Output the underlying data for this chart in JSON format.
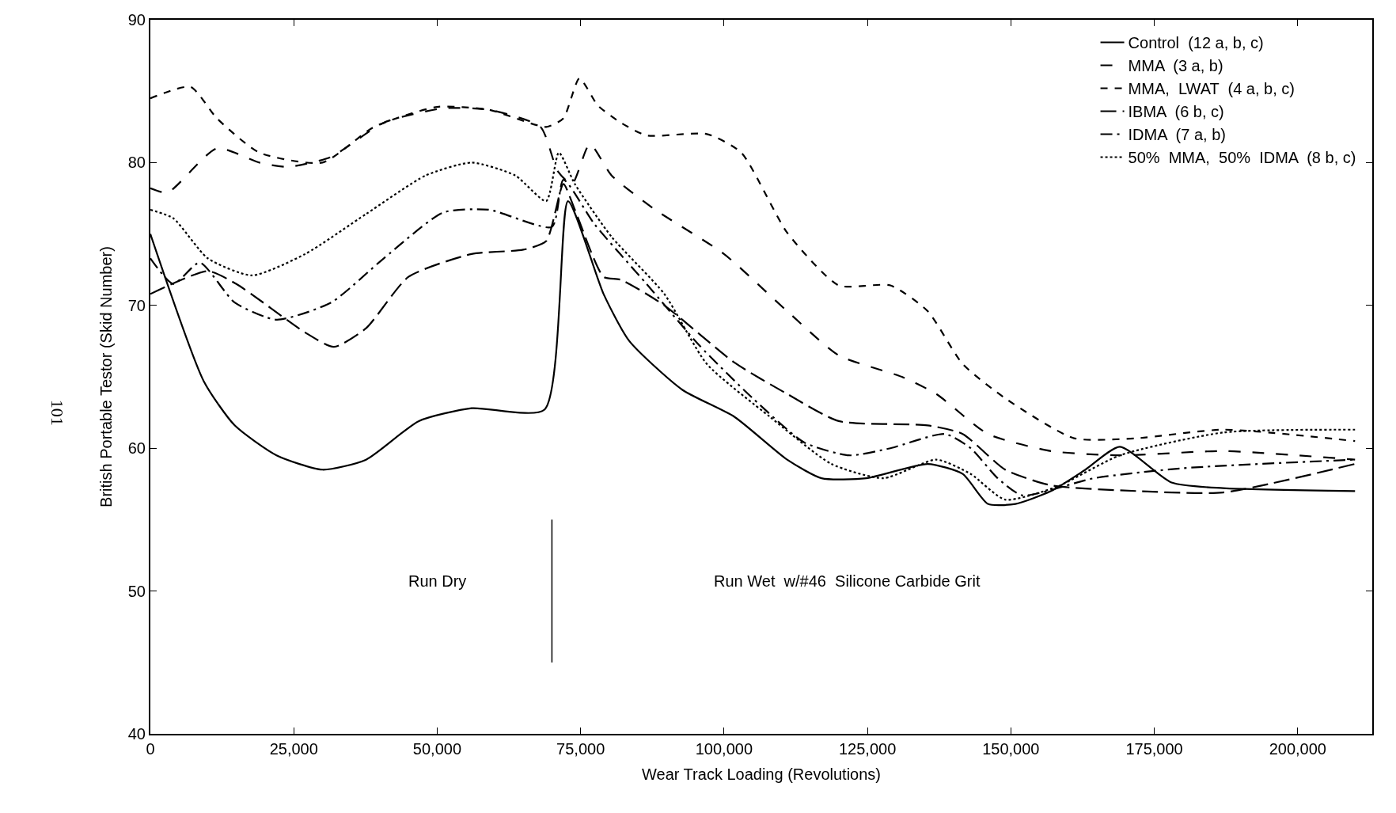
{
  "chart_data": {
    "type": "line",
    "xlabel": "Wear Track Loading (Revolutions)",
    "ylabel": "British Portable Testor (Skid Number)",
    "xlim": [
      0,
      213000
    ],
    "ylim": [
      40,
      90
    ],
    "xticks": [
      0,
      {
        "value": 25000,
        "label": "25,000"
      },
      {
        "value": 50000,
        "label": "50,000"
      },
      {
        "value": 75000,
        "label": "75,000"
      },
      {
        "value": 100000,
        "label": "100,000"
      },
      {
        "value": 125000,
        "label": "125,000"
      },
      {
        "value": 150000,
        "label": "150,000"
      },
      {
        "value": 175000,
        "label": "175,000"
      },
      {
        "value": 200000,
        "label": "200,000"
      }
    ],
    "yticks": [
      40,
      50,
      60,
      70,
      80,
      90
    ],
    "legend": "top right",
    "marker": "none",
    "series": [
      {
        "name": "Control  (12 a, b, c)",
        "color": "#000000",
        "line_style": "solid",
        "x": [
          0,
          9300,
          14700,
          22000,
          30000,
          37600,
          46800,
          56000,
          68700,
          72800,
          79000,
          83500,
          92700,
          101800,
          111000,
          117000,
          124800,
          135500,
          141600,
          146000,
          150800,
          157000,
          163000,
          169000,
          178000,
          187000,
          210000
        ],
        "values": [
          75,
          64.7,
          61.6,
          59.5,
          58.5,
          59.2,
          61.9,
          62.8,
          62.7,
          77.3,
          70.8,
          67.5,
          64.1,
          62.2,
          59.2,
          57.9,
          57.9,
          58.9,
          58.2,
          56.1,
          56.1,
          57,
          58.5,
          60.1,
          57.6,
          57.2,
          57.0
        ]
      },
      {
        "name": "MMA  (3 a, b)",
        "color": "#000000",
        "line_style": "longdash",
        "x": [
          0,
          3000,
          11600,
          19000,
          24000,
          31500,
          40700,
          51000,
          59000,
          68000,
          71000,
          73500,
          76600,
          80400,
          88000,
          100000,
          111000,
          120000,
          131000,
          137000,
          146000,
          157000,
          169000,
          187000,
          210000
        ],
        "values": [
          78.2,
          77.9,
          81,
          80,
          79.7,
          80.4,
          82.8,
          83.8,
          83.7,
          82.5,
          79.4,
          78.5,
          81.3,
          79.1,
          76.7,
          73.6,
          69.6,
          66.5,
          65,
          63.8,
          61,
          59.8,
          59.5,
          59.8,
          59.2
        ]
      },
      {
        "name": "MMA,  LWAT  (4 a, b, c)",
        "color": "#000000",
        "line_style": "dashed",
        "x": [
          0,
          7000,
          11600,
          19000,
          30000,
          39000,
          50000,
          59000,
          69000,
          72000,
          74800,
          78000,
          82000,
          86500,
          97000,
          103000,
          111000,
          120000,
          129000,
          135500,
          141600,
          149000,
          161000,
          172000,
          187000,
          210000
        ],
        "values": [
          84.5,
          85.3,
          83.1,
          80.7,
          80,
          82.5,
          83.9,
          83.7,
          82.5,
          83.1,
          85.9,
          84,
          82.8,
          81.9,
          82,
          80.7,
          75.1,
          71.4,
          71.4,
          69.6,
          65.9,
          63.5,
          60.7,
          60.7,
          61.3,
          60.5
        ]
      },
      {
        "name": "IBMA  (6 b, c)",
        "color": "#000000",
        "line_style": "longdashgap",
        "x": [
          0,
          10000,
          15000,
          27000,
          32000,
          37600,
          45000,
          56000,
          65000,
          69000,
          72000,
          74000,
          79000,
          82000,
          89600,
          101800,
          111000,
          120000,
          135500,
          141600,
          149000,
          157000,
          172000,
          187000,
          210000
        ],
        "values": [
          70.8,
          72.4,
          71.5,
          68.1,
          67.1,
          68.4,
          72,
          73.6,
          73.9,
          74.5,
          78.5,
          76.7,
          72,
          71.8,
          70,
          66,
          63.8,
          61.9,
          61.6,
          61,
          58.5,
          57.4,
          57,
          56.9,
          58.9
        ]
      },
      {
        "name": "IDMA  (7 a, b)",
        "color": "#000000",
        "line_style": "dashdot",
        "x": [
          0,
          4000,
          8600,
          14700,
          22000,
          31500,
          40700,
          51000,
          59000,
          70000,
          72000,
          77400,
          86500,
          95700,
          105000,
          114000,
          121800,
          129000,
          138500,
          143000,
          147700,
          152000,
          164500,
          180000,
          210000
        ],
        "values": [
          73.3,
          71.5,
          73,
          70.2,
          69,
          70.2,
          73.3,
          76.5,
          76.7,
          75.5,
          78.8,
          75.7,
          71.5,
          67.2,
          63.5,
          60.4,
          59.5,
          60,
          61,
          60,
          57.9,
          56.7,
          57.9,
          58.6,
          59.2
        ]
      },
      {
        "name": "50%  MMA,  50%  IDMA  (8 b, c)",
        "color": "#000000",
        "line_style": "dotted",
        "x": [
          0,
          4000,
          10000,
          17700,
          27000,
          37600,
          48000,
          56000,
          63600,
          69000,
          71200,
          74000,
          80400,
          89600,
          97000,
          108000,
          118700,
          127800,
          137000,
          143000,
          149000,
          158000,
          169000,
          187000,
          210000
        ],
        "values": [
          76.7,
          76.1,
          73.3,
          72.1,
          73.6,
          76.4,
          79.1,
          80,
          79.1,
          77.3,
          80.7,
          78.5,
          74.8,
          70.8,
          65.9,
          62.2,
          58.9,
          57.9,
          59.2,
          58.2,
          56.4,
          57.3,
          59.5,
          61.1,
          61.3
        ]
      }
    ],
    "ref_lines": [
      {
        "axis": "x",
        "value": 70000
      }
    ],
    "annotations": [
      "Run Dry",
      "Run Wet  w/#46  Silicone Carbide Grit",
      "101"
    ]
  }
}
